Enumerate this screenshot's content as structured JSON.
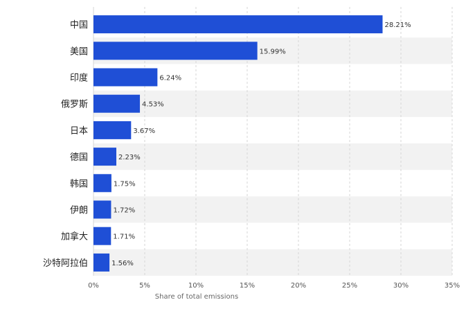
{
  "chart_data": {
    "type": "bar",
    "orientation": "horizontal",
    "categories": [
      "中国",
      "美国",
      "印度",
      "俄罗斯",
      "日本",
      "德国",
      "韩国",
      "伊朗",
      "加拿大",
      "沙特阿拉伯"
    ],
    "values": [
      28.21,
      15.99,
      6.24,
      4.53,
      3.67,
      2.23,
      1.75,
      1.72,
      1.71,
      1.56
    ],
    "value_labels": [
      "28.21%",
      "15.99%",
      "6.24%",
      "4.53%",
      "3.67%",
      "2.23%",
      "1.75%",
      "1.72%",
      "1.71%",
      "1.56%"
    ],
    "xlabel": "Share of total emissions",
    "ylabel": "",
    "xlim": [
      0,
      35
    ],
    "xticks": [
      0,
      5,
      10,
      15,
      20,
      25,
      30,
      35
    ],
    "xtick_labels": [
      "0%",
      "5%",
      "10%",
      "15%",
      "20%",
      "25%",
      "30%",
      "35%"
    ],
    "grid": true,
    "bar_color": "#1f4fd6",
    "band_color": "#f2f2f2"
  }
}
